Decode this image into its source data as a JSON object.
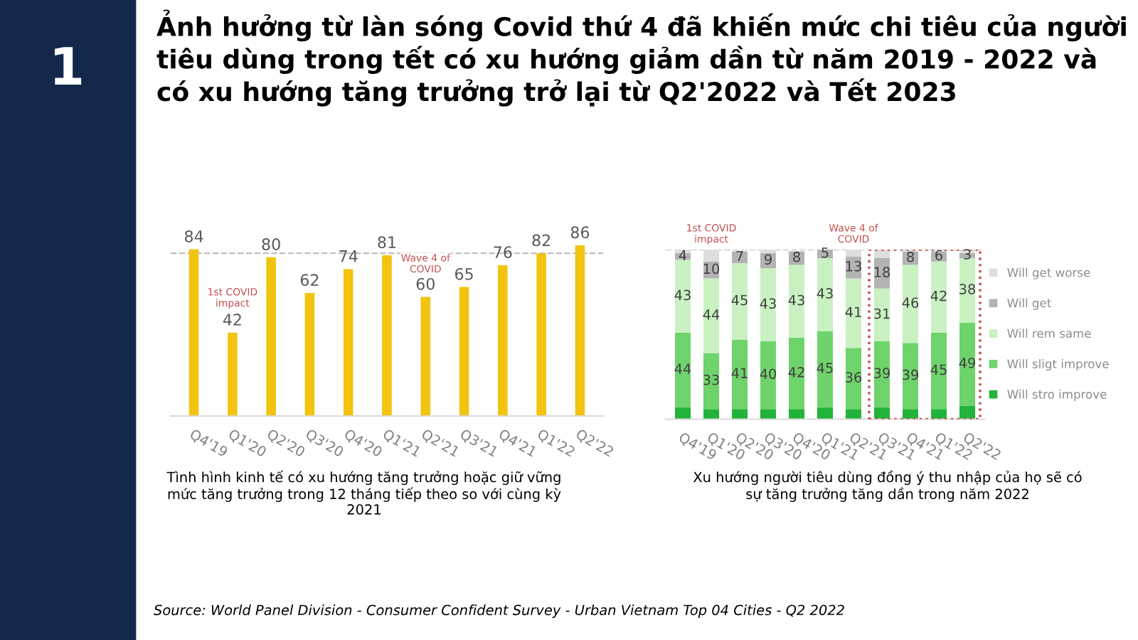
{
  "chart_data": [
    {
      "type": "bar",
      "title": "Ảnh hưởng từ làn sóng Covid thứ 4 đã khiến mức chi tiêu của người tiêu dùng trong tết có xu hướng giảm dần từ năm 2019 - 2022 và có xu hướng tăng trưởng trở lại từ Q2'2022 và Tết 2023",
      "categories": [
        "Q4'19",
        "Q1'20",
        "Q2'20",
        "Q3'20",
        "Q4'20",
        "Q1'21",
        "Q2'21",
        "Q3'21",
        "Q4'21",
        "Q1'22",
        "Q2'22"
      ],
      "values": [
        84,
        42,
        80,
        62,
        74,
        81,
        60,
        65,
        76,
        82,
        86
      ],
      "color": "#f2c40f",
      "tick_labels": "x",
      "data_labels": true,
      "ref_lines": [
        {
          "axis": "y",
          "value": 82,
          "color": "#bfbfbf",
          "line_style": "dashed"
        }
      ],
      "annotations": [
        "1",
        "1st COVID impact",
        "Wave 4 of COVID",
        "Tình hình kinh tế có xu hướng tăng trưởng hoặc giữ vững mức tăng trưởng trong 12 tháng tiếp theo so với cùng kỳ 2021",
        "Source: World Panel Division - Consumer Confident Survey - Urban Vietnam Top 04 Cities - Q2 2022"
      ]
    },
    {
      "type": "bar",
      "stacked": true,
      "categories": [
        "Q4'19",
        "Q1'20",
        "Q2'20",
        "Q3'20",
        "Q4'20",
        "Q1'21",
        "Q2'21",
        "Q3'21",
        "Q4'21",
        "Q1'22",
        "Q2'22"
      ],
      "series": [
        {
          "name": "Will stro improve",
          "color": "#22b33a",
          "values": [
            7,
            6,
            6,
            6,
            6,
            7,
            6,
            7,
            6,
            6,
            8
          ],
          "value_labels": [
            null,
            null,
            null,
            null,
            null,
            null,
            null,
            null,
            null,
            null,
            null
          ]
        },
        {
          "name": "Will sligt improve",
          "color": "#6fd36b",
          "values": [
            44,
            33,
            41,
            40,
            42,
            45,
            36,
            39,
            39,
            45,
            49
          ],
          "value_labels": [
            "44",
            "33",
            "41",
            "40",
            "42",
            "45",
            "36",
            "39",
            "39",
            "45",
            "49"
          ]
        },
        {
          "name": "Will rem same",
          "color": "#c9f1c2",
          "values": [
            43,
            44,
            45,
            43,
            43,
            43,
            41,
            31,
            46,
            42,
            38
          ],
          "value_labels": [
            "43",
            "44",
            "45",
            "43",
            "43",
            "43",
            "41",
            "31",
            "46",
            "42",
            "38"
          ]
        },
        {
          "name": "Will get",
          "color": "#b3b3b3",
          "values": [
            4,
            10,
            7,
            9,
            8,
            5,
            13,
            18,
            8,
            6,
            3
          ],
          "value_labels": [
            "4",
            "10",
            "7",
            "9",
            "8",
            "5",
            "13",
            "18",
            "8",
            "6",
            "3"
          ]
        },
        {
          "name": "Will get worse",
          "color": "#dedede",
          "values": [
            2,
            7,
            null,
            2,
            null,
            0,
            4,
            5,
            null,
            null,
            2
          ],
          "value_labels": [
            null,
            null,
            null,
            null,
            null,
            null,
            null,
            null,
            null,
            null,
            null
          ]
        }
      ],
      "tick_labels": "x",
      "legend": "right",
      "ref_lines": [
        {
          "axis": "y",
          "value": 100,
          "color": "#bfbfbf",
          "line_style": "dashed"
        }
      ],
      "annotations": [
        "1st COVID impact",
        "Wave 4 of COVID",
        "Xu hướng người tiêu dùng đồng ý thu nhập của họ sẽ có sự tăng trưởng tăng dần trong năm 2022"
      ]
    }
  ]
}
